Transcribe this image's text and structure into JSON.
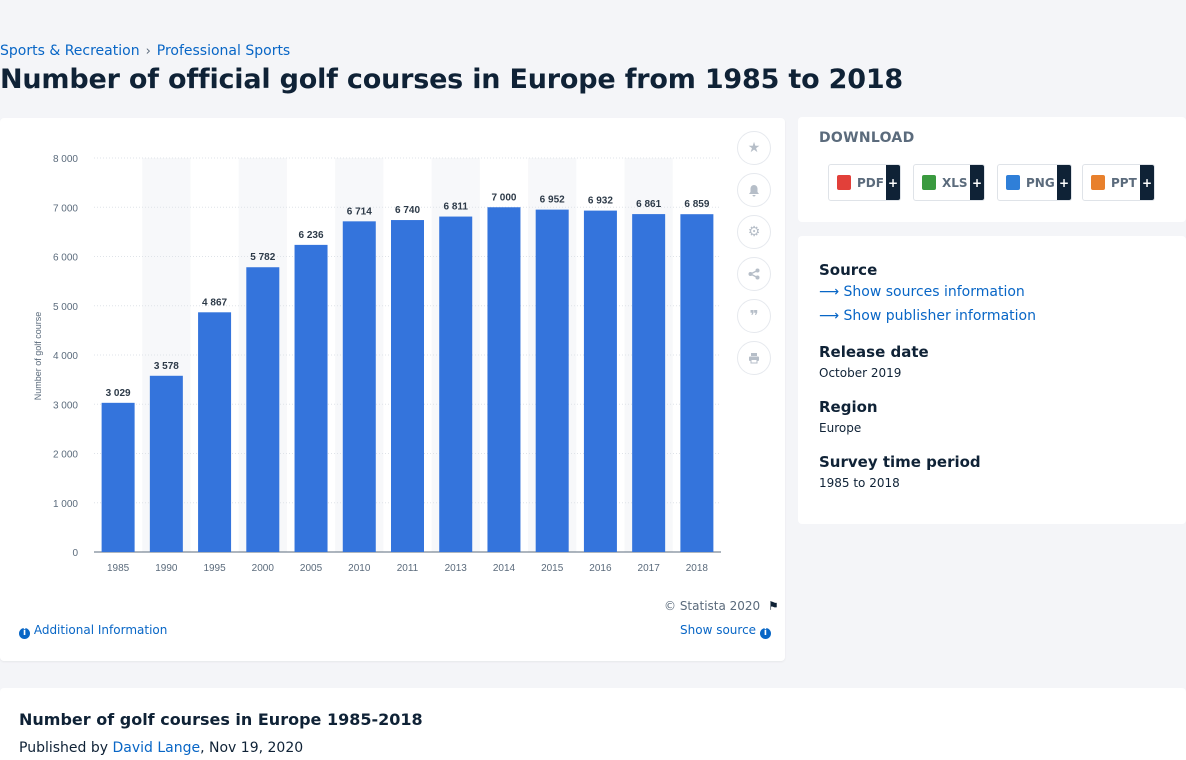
{
  "breadcrumb": [
    "Sports & Recreation",
    "Professional Sports"
  ],
  "page_title": "Number of official golf courses in Europe from 1985 to 2018",
  "tools": [
    {
      "name": "favorite",
      "icon": "star-icon"
    },
    {
      "name": "notification",
      "icon": "bell-icon"
    },
    {
      "name": "settings",
      "icon": "gear-icon"
    },
    {
      "name": "share",
      "icon": "share-icon"
    },
    {
      "name": "cite",
      "icon": "quote-icon"
    },
    {
      "name": "print",
      "icon": "print-icon"
    }
  ],
  "chart_footer": {
    "copyright": "© Statista 2020",
    "additional_info": "Additional Information",
    "show_source": "Show source"
  },
  "download": {
    "title": "DOWNLOAD",
    "buttons": [
      {
        "label": "PDF",
        "color": "#e2403a"
      },
      {
        "label": "XLS",
        "color": "#3a9a3f"
      },
      {
        "label": "PNG",
        "color": "#2f7fd8"
      },
      {
        "label": "PPT",
        "color": "#e8802c"
      }
    ],
    "plus": "+"
  },
  "info": {
    "source_heading": "Source",
    "show_sources": "Show sources information",
    "show_publisher": "Show publisher information",
    "release_heading": "Release date",
    "release_value": "October 2019",
    "region_heading": "Region",
    "region_value": "Europe",
    "period_heading": "Survey time period",
    "period_value": "1985 to 2018"
  },
  "bottom": {
    "title": "Number of golf courses in Europe 1985-2018",
    "published_prefix": "Published by ",
    "author": "David Lange",
    "date": ", Nov 19, 2020"
  },
  "colors": {
    "bar": "#3474dc",
    "link": "#0866c6",
    "dark": "#0f2236"
  },
  "chart_data": {
    "type": "bar",
    "categories": [
      "1985",
      "1990",
      "1995",
      "2000",
      "2005",
      "2010",
      "2011",
      "2013",
      "2014",
      "2015",
      "2016",
      "2017",
      "2018"
    ],
    "values": [
      3029,
      3578,
      4867,
      5782,
      6236,
      6714,
      6740,
      6811,
      7000,
      6952,
      6932,
      6861,
      6859
    ],
    "value_labels": [
      "3 029",
      "3 578",
      "4 867",
      "5 782",
      "6 236",
      "6 714",
      "6 740",
      "6 811",
      "7 000",
      "6 952",
      "6 932",
      "6 861",
      "6 859"
    ],
    "ylabel": "Number of golf course",
    "ylim": [
      0,
      8000
    ],
    "yticks": [
      0,
      1000,
      2000,
      3000,
      4000,
      5000,
      6000,
      7000,
      8000
    ],
    "ytick_labels": [
      "0",
      "1 000",
      "2 000",
      "3 000",
      "4 000",
      "5 000",
      "6 000",
      "7 000",
      "8 000"
    ],
    "grid": true
  }
}
